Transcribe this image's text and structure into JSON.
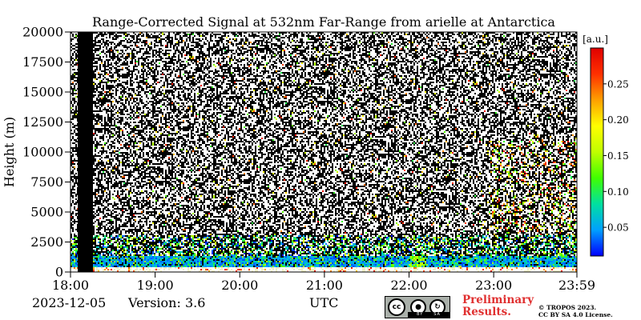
{
  "chart_data": {
    "type": "heatmap",
    "title": "Range-Corrected Signal at 532nm Far-Range from arielle at Antarctica",
    "xlabel": "UTC",
    "ylabel": "Height (m)",
    "x_ticks": [
      "18:00",
      "19:00",
      "20:00",
      "21:00",
      "22:00",
      "23:00",
      "23:59"
    ],
    "y_ticks": [
      0,
      2500,
      5000,
      7500,
      10000,
      12500,
      15000,
      17500,
      20000
    ],
    "ylim": [
      0,
      20000
    ],
    "colorbar": {
      "unit": "[a.u.]",
      "ticks": [
        0.05,
        0.1,
        0.15,
        0.2,
        0.25
      ],
      "tick_labels": [
        "0.05",
        "0.10",
        "0.15",
        "0.20",
        "0.25"
      ],
      "range": [
        0.01,
        0.3
      ],
      "colors": [
        "#0000ff",
        "#00a0ff",
        "#00e0a0",
        "#40ff00",
        "#c0ff00",
        "#ffff00",
        "#ffa000",
        "#ff3000",
        "#e00000"
      ]
    },
    "no_data_interval": [
      "18:05",
      "18:15"
    ]
  },
  "footer": {
    "date": "2023-12-05",
    "version": "Version: 3.6",
    "axis_unit": "UTC",
    "preliminary": [
      "Preliminary",
      "Results."
    ],
    "copyright": [
      "© TROPOS 2023.",
      "CC BY SA 4.0 License."
    ],
    "license_badge": [
      "cc",
      "BY",
      "SA"
    ]
  }
}
